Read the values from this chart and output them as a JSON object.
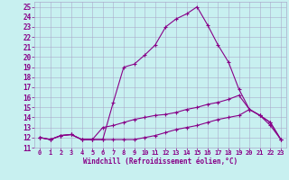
{
  "xlabel": "Windchill (Refroidissement éolien,°C)",
  "xlim": [
    -0.5,
    23.5
  ],
  "ylim": [
    11,
    25.5
  ],
  "yticks": [
    11,
    12,
    13,
    14,
    15,
    16,
    17,
    18,
    19,
    20,
    21,
    22,
    23,
    24,
    25
  ],
  "xticks": [
    0,
    1,
    2,
    3,
    4,
    5,
    6,
    7,
    8,
    9,
    10,
    11,
    12,
    13,
    14,
    15,
    16,
    17,
    18,
    19,
    20,
    21,
    22,
    23
  ],
  "background_color": "#c8f0f0",
  "grid_color": "#aaaacc",
  "line_color": "#880088",
  "line1_x": [
    0,
    1,
    2,
    3,
    4,
    5,
    6,
    7,
    8,
    9,
    10,
    11,
    12,
    13,
    14,
    15,
    16,
    17,
    18,
    19,
    20,
    21,
    22,
    23
  ],
  "line1_y": [
    12.0,
    11.8,
    12.2,
    12.3,
    11.8,
    11.8,
    11.8,
    15.5,
    19.0,
    19.3,
    20.2,
    21.2,
    23.0,
    23.8,
    24.3,
    25.0,
    23.2,
    21.2,
    19.5,
    16.8,
    14.8,
    14.2,
    13.5,
    11.8
  ],
  "line2_x": [
    0,
    1,
    2,
    3,
    4,
    5,
    6,
    7,
    8,
    9,
    10,
    11,
    12,
    13,
    14,
    15,
    16,
    17,
    18,
    19,
    20,
    21,
    22,
    23
  ],
  "line2_y": [
    12.0,
    11.8,
    12.2,
    12.3,
    11.8,
    11.8,
    13.0,
    13.2,
    13.5,
    13.8,
    14.0,
    14.2,
    14.3,
    14.5,
    14.8,
    15.0,
    15.3,
    15.5,
    15.8,
    16.2,
    14.8,
    14.2,
    13.5,
    11.8
  ],
  "line3_x": [
    0,
    1,
    2,
    3,
    4,
    5,
    6,
    7,
    8,
    9,
    10,
    11,
    12,
    13,
    14,
    15,
    16,
    17,
    18,
    19,
    20,
    21,
    22,
    23
  ],
  "line3_y": [
    12.0,
    11.8,
    12.2,
    12.3,
    11.8,
    11.8,
    11.8,
    11.8,
    11.8,
    11.8,
    12.0,
    12.2,
    12.5,
    12.8,
    13.0,
    13.2,
    13.5,
    13.8,
    14.0,
    14.2,
    14.8,
    14.2,
    13.2,
    11.8
  ],
  "ytick_fontsize": 5.5,
  "xtick_fontsize": 5.0,
  "xlabel_fontsize": 5.5
}
